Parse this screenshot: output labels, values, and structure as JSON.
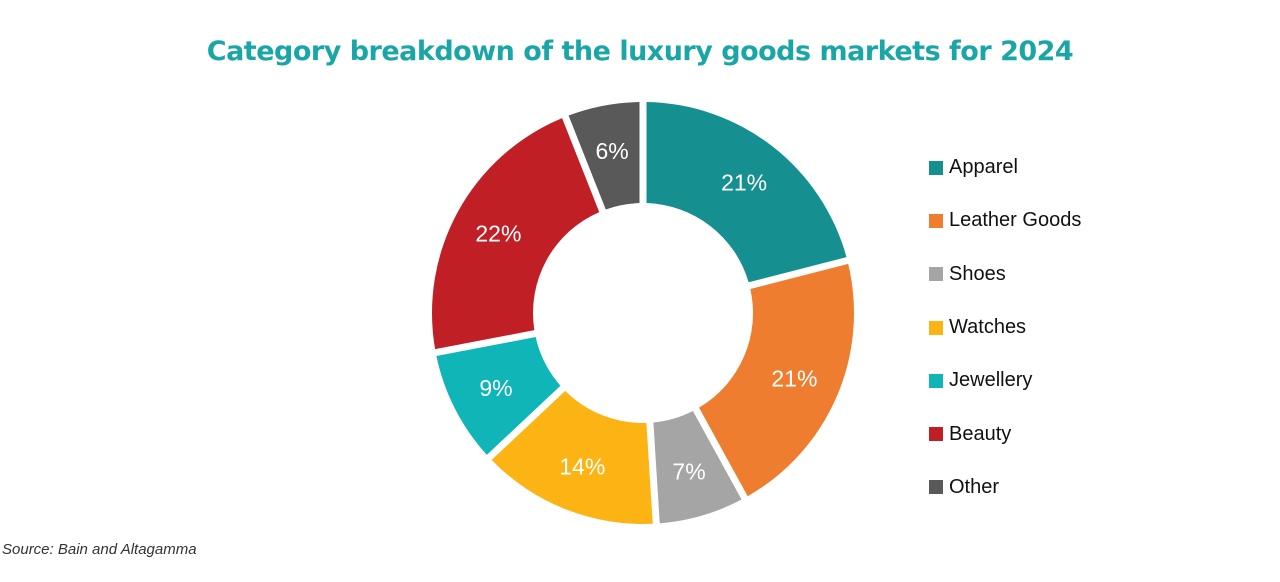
{
  "chart_data": {
    "type": "pie",
    "variant": "donut",
    "title": "Category breakdown of the luxury goods markets for 2024",
    "categories": [
      "Apparel",
      "Leather Goods",
      "Shoes",
      "Watches",
      "Jewellery",
      "Beauty",
      "Other"
    ],
    "values": [
      21,
      21,
      7,
      14,
      9,
      22,
      6
    ],
    "value_labels": [
      "21%",
      "21%",
      "7%",
      "14%",
      "9%",
      "22%",
      "6%"
    ],
    "colors": [
      "#158f8f",
      "#ee7d30",
      "#a5a5a5",
      "#fcb415",
      "#0fb5b7",
      "#c01f26",
      "#595959"
    ],
    "legend_position": "right",
    "source": "Source: Bain and Altagamma"
  }
}
